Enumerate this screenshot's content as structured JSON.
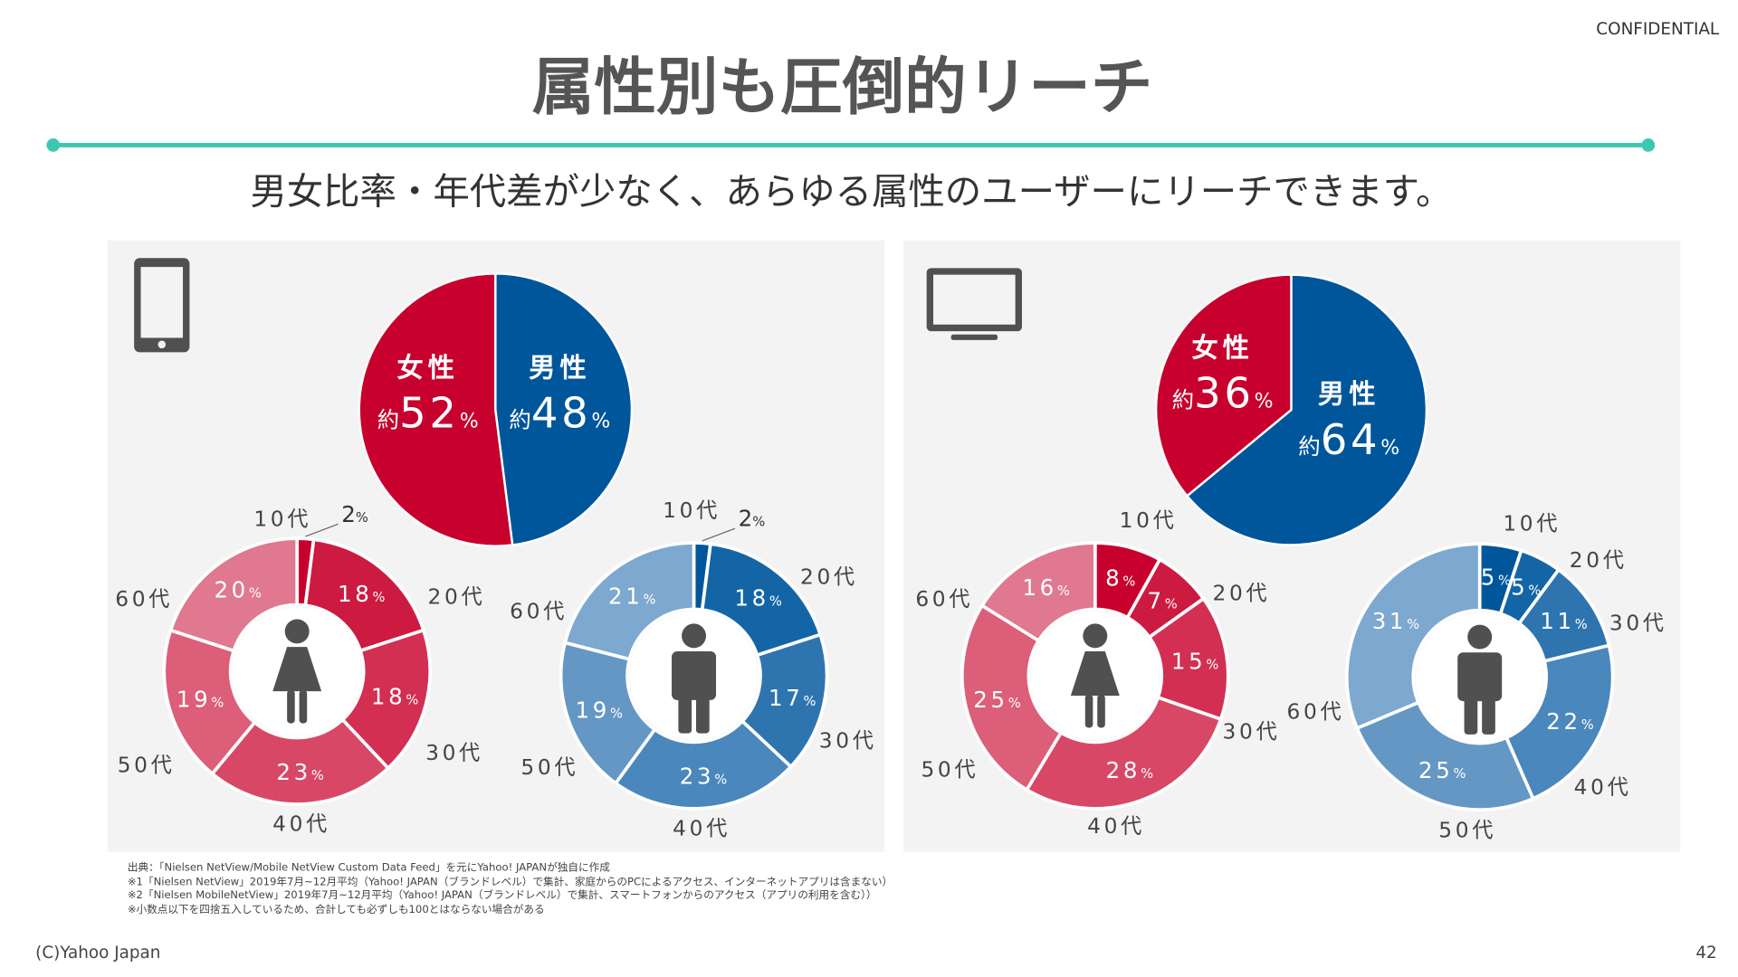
{
  "header": {
    "confidential": "CONFIDENTIAL",
    "title": "属性別も圧倒的リーチ",
    "subtitle": "男女比率・年代差が少なく、あらゆる属性のユーザーにリーチできます。"
  },
  "colors": {
    "accent_line": "#3cc8b0",
    "female": "#c8002d",
    "male": "#00569b",
    "panel_bg": "#f3f3f3",
    "icon": "#505050"
  },
  "footnotes": [
    "出典：「Nielsen NetView/Mobile NetView Custom Data Feed」を元にYahoo! JAPANが独自に作成",
    "※1「Nielsen NetView」2019年7月~12月平均（Yahoo! JAPAN（ブランドレベル）で集計、家庭からのPCによるアクセス、インターネットアプリは含まない）",
    "※2「Nielsen MobileNetView」2019年7月~12月平均（Yahoo! JAPAN（ブランドレベル）で集計、スマートフォンからのアクセス（アプリの利用を含む））",
    "※小数点以下を四捨五入しているため、合計しても必ずしも100とはならない場合がある"
  ],
  "footer": {
    "copyright": "(C)Yahoo Japan",
    "page_number": "42"
  },
  "chart_data": [
    {
      "type": "pie",
      "panel": "smartphone",
      "title": "男女比率",
      "approx_prefix": "約",
      "unit": "%",
      "slices": [
        {
          "label": "女性",
          "value": 52
        },
        {
          "label": "男性",
          "value": 48
        }
      ]
    },
    {
      "type": "pie",
      "panel": "tv",
      "title": "男女比率",
      "approx_prefix": "約",
      "unit": "%",
      "slices": [
        {
          "label": "女性",
          "value": 36
        },
        {
          "label": "男性",
          "value": 64
        }
      ]
    },
    {
      "type": "donut",
      "panel": "smartphone",
      "gender": "female",
      "unit": "%",
      "categories": [
        "10代",
        "20代",
        "30代",
        "40代",
        "50代",
        "60代"
      ],
      "values": [
        2,
        18,
        18,
        23,
        19,
        20
      ]
    },
    {
      "type": "donut",
      "panel": "smartphone",
      "gender": "male",
      "unit": "%",
      "categories": [
        "10代",
        "20代",
        "30代",
        "40代",
        "50代",
        "60代"
      ],
      "values": [
        2,
        18,
        17,
        23,
        19,
        21
      ]
    },
    {
      "type": "donut",
      "panel": "tv",
      "gender": "female",
      "unit": "%",
      "categories": [
        "10代",
        "20代",
        "30代",
        "40代",
        "50代",
        "60代"
      ],
      "values": [
        8,
        7,
        15,
        28,
        25,
        16
      ]
    },
    {
      "type": "donut",
      "panel": "tv",
      "gender": "male",
      "unit": "%",
      "categories": [
        "10代",
        "20代",
        "30代",
        "40代",
        "50代",
        "60代"
      ],
      "values": [
        5,
        5,
        11,
        22,
        25,
        31
      ]
    }
  ]
}
